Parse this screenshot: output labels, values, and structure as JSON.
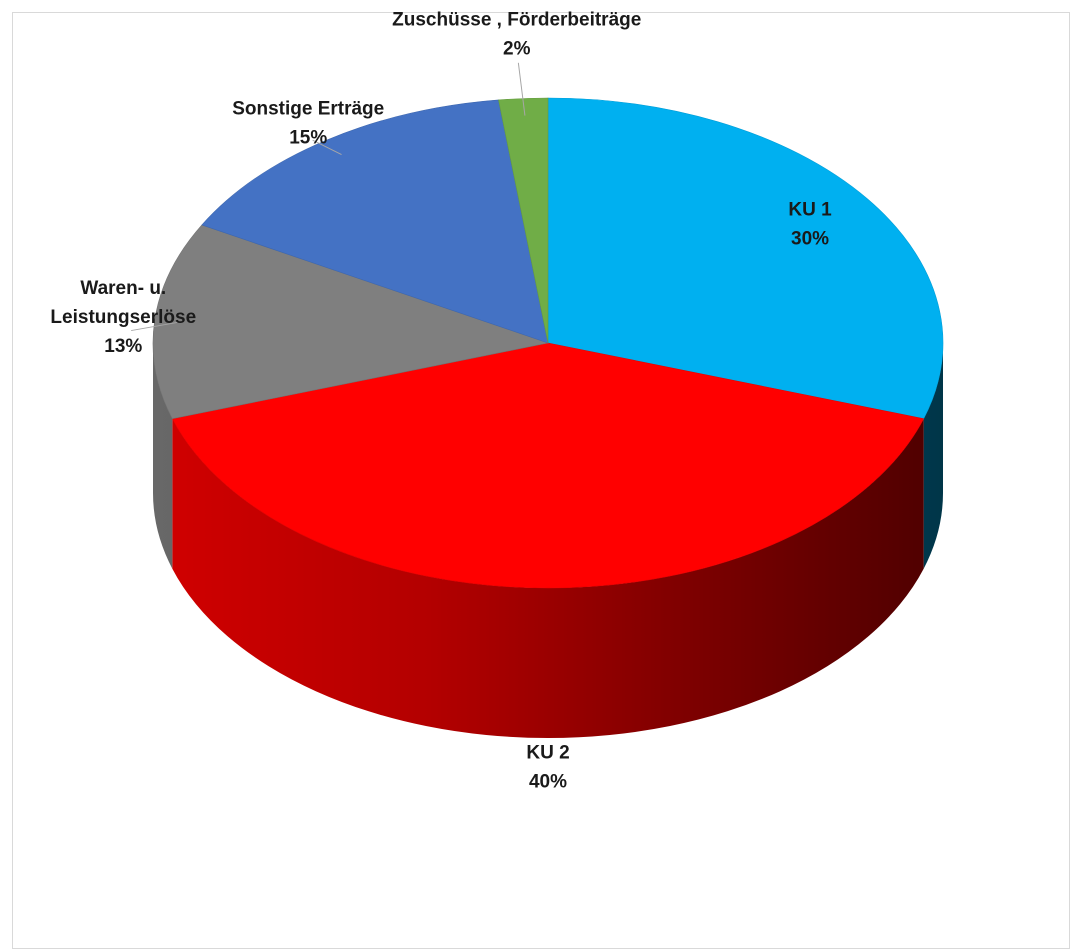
{
  "chart_data": {
    "type": "pie",
    "variant": "3d",
    "title": "",
    "start_angle_deg": 90,
    "direction": "clockwise",
    "slices": [
      {
        "label": "KU 1",
        "value": 30,
        "percent_label": "30%",
        "color": "#00B0F0"
      },
      {
        "label": "KU 2",
        "value": 40,
        "percent_label": "40%",
        "color": "#FF0000"
      },
      {
        "label": "Waren- u. Leistungserlöse",
        "label_lines": [
          "Waren- u.",
          "Leistungserlöse"
        ],
        "value": 13,
        "percent_label": "13%",
        "color": "#7F7F7F"
      },
      {
        "label": "Sonstige Erträge",
        "value": 15,
        "percent_label": "15%",
        "color": "#4472C4"
      },
      {
        "label": "Zuschüsse , Förderbeiträge",
        "value": 2,
        "percent_label": "2%",
        "color": "#70AD47"
      }
    ],
    "legend": "none",
    "data_labels": "category and percentage"
  }
}
